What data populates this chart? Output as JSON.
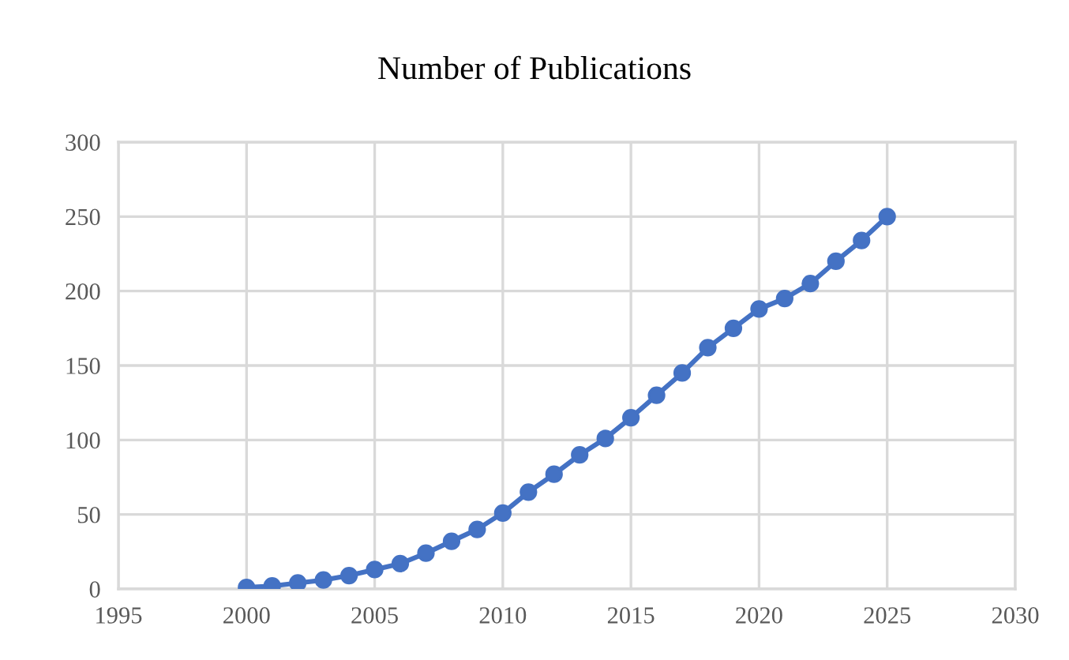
{
  "chart_data": {
    "type": "line",
    "title": "Number of Publications",
    "x": [
      2000,
      2001,
      2002,
      2003,
      2004,
      2005,
      2006,
      2007,
      2008,
      2009,
      2010,
      2011,
      2012,
      2013,
      2014,
      2015,
      2016,
      2017,
      2018,
      2019,
      2020,
      2021,
      2022,
      2023,
      2024,
      2025
    ],
    "series": [
      {
        "color": "#4472c4",
        "values": [
          1,
          2,
          4,
          6,
          9,
          13,
          17,
          24,
          32,
          40,
          51,
          65,
          77,
          90,
          101,
          115,
          130,
          145,
          162,
          175,
          188,
          195,
          205,
          220,
          234,
          250
        ]
      }
    ],
    "xlim": [
      1995,
      2030
    ],
    "xticks": [
      1995,
      2000,
      2005,
      2010,
      2015,
      2020,
      2025,
      2030
    ],
    "ylim": [
      0,
      300
    ],
    "yticks": [
      0,
      50,
      100,
      150,
      200,
      250,
      300
    ],
    "grid": true,
    "marker": "circle",
    "line_style": "solid"
  }
}
